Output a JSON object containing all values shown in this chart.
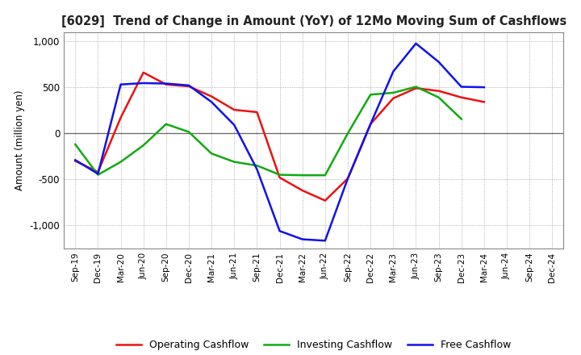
{
  "title": "[6029]  Trend of Change in Amount (YoY) of 12Mo Moving Sum of Cashflows",
  "ylabel": "Amount (million yen)",
  "ylim": [
    -1250,
    1100
  ],
  "yticks": [
    -1000,
    -500,
    0,
    500,
    1000
  ],
  "ytick_labels": [
    "-1,000",
    "-500",
    "0",
    "500",
    "1,000"
  ],
  "x_labels": [
    "Sep-19",
    "Dec-19",
    "Mar-20",
    "Jun-20",
    "Sep-20",
    "Dec-20",
    "Mar-21",
    "Jun-21",
    "Sep-21",
    "Dec-21",
    "Mar-22",
    "Jun-22",
    "Sep-22",
    "Dec-22",
    "Mar-23",
    "Jun-23",
    "Sep-23",
    "Dec-23",
    "Mar-24",
    "Jun-24",
    "Sep-24",
    "Dec-24"
  ],
  "operating": [
    -300,
    -420,
    170,
    660,
    530,
    510,
    400,
    255,
    230,
    -480,
    -620,
    -730,
    -490,
    100,
    380,
    490,
    460,
    390,
    340,
    null,
    null,
    null
  ],
  "investing": [
    -120,
    -450,
    -310,
    -130,
    100,
    15,
    -220,
    -310,
    -350,
    -450,
    -455,
    -455,
    0,
    420,
    440,
    505,
    390,
    155,
    null,
    null,
    null,
    null
  ],
  "free": [
    -290,
    -440,
    530,
    545,
    540,
    520,
    340,
    90,
    -390,
    -1060,
    -1150,
    -1165,
    -490,
    100,
    670,
    975,
    775,
    505,
    500,
    null,
    null,
    null
  ],
  "op_color": "#ee1111",
  "inv_color": "#11aa11",
  "free_color": "#1111ee",
  "legend_labels": [
    "Operating Cashflow",
    "Investing Cashflow",
    "Free Cashflow"
  ],
  "background_color": "#ffffff",
  "grid_color": "#999999",
  "linewidth": 1.8
}
